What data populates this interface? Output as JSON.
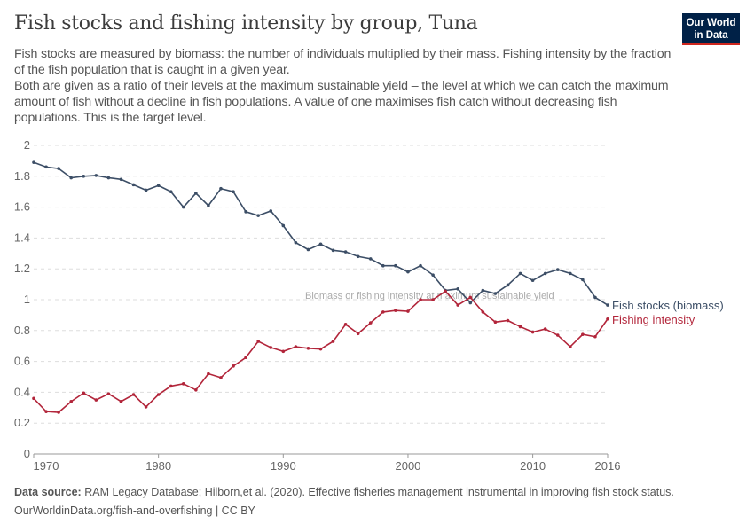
{
  "header": {
    "title": "Fish stocks and fishing intensity by group, Tuna",
    "subtitle_1": "Fish stocks are measured by biomass: the number of individuals multiplied by their mass. Fishing intensity by the fraction of the fish population that is caught in a given year.",
    "subtitle_2": "Both are given as a ratio of their levels at the maximum sustainable yield – the level at which we can catch the maximum amount of fish without a decline in fish populations. A value of one maximises fish catch without decreasing fish populations. This is the target level.",
    "logo": "Our World in Data"
  },
  "chart_data": {
    "type": "line",
    "x": [
      1970,
      1971,
      1972,
      1973,
      1974,
      1975,
      1976,
      1977,
      1978,
      1979,
      1980,
      1981,
      1982,
      1983,
      1984,
      1985,
      1986,
      1987,
      1988,
      1989,
      1990,
      1991,
      1992,
      1993,
      1994,
      1995,
      1996,
      1997,
      1998,
      1999,
      2000,
      2001,
      2002,
      2003,
      2004,
      2005,
      2006,
      2007,
      2008,
      2009,
      2010,
      2011,
      2012,
      2013,
      2014,
      2015,
      2016
    ],
    "series": [
      {
        "name": "Fish stocks (biomass)",
        "color": "#3c4e66",
        "values": [
          1.89,
          1.86,
          1.85,
          1.79,
          1.8,
          1.805,
          1.79,
          1.78,
          1.745,
          1.71,
          1.74,
          1.7,
          1.6,
          1.69,
          1.61,
          1.72,
          1.7,
          1.57,
          1.545,
          1.575,
          1.48,
          1.37,
          1.325,
          1.36,
          1.32,
          1.31,
          1.28,
          1.265,
          1.22,
          1.22,
          1.18,
          1.22,
          1.16,
          1.06,
          1.07,
          0.98,
          1.06,
          1.04,
          1.095,
          1.17,
          1.125,
          1.17,
          1.195,
          1.17,
          1.13,
          1.015,
          0.965
        ]
      },
      {
        "name": "Fishing intensity",
        "color": "#b2253a",
        "values": [
          0.36,
          0.275,
          0.27,
          0.34,
          0.395,
          0.35,
          0.39,
          0.34,
          0.385,
          0.305,
          0.385,
          0.44,
          0.455,
          0.415,
          0.52,
          0.495,
          0.57,
          0.625,
          0.73,
          0.69,
          0.665,
          0.695,
          0.685,
          0.68,
          0.73,
          0.84,
          0.78,
          0.85,
          0.92,
          0.93,
          0.925,
          1.0,
          1.0,
          1.055,
          0.965,
          1.015,
          0.92,
          0.855,
          0.865,
          0.825,
          0.79,
          0.81,
          0.77,
          0.695,
          0.775,
          0.76,
          0.875
        ]
      }
    ],
    "xticks": [
      "1970",
      "1980",
      "1990",
      "2000",
      "2010",
      "2016"
    ],
    "yticks": [
      "0",
      "0.2",
      "0.4",
      "0.6",
      "0.8",
      "1",
      "1.2",
      "1.4",
      "1.6",
      "1.8",
      "2"
    ],
    "ylim": [
      0,
      2
    ],
    "xlim": [
      1970,
      2016
    ],
    "grid": "horizontal dashed",
    "legend": "right, inline labels",
    "annotation": "Biomass or fishing intensity at maximum sustainable yield",
    "reference_value": 1
  },
  "footer": {
    "source_label": "Data source:",
    "source_text": "RAM Legacy Database; Hilborn,et al. (2020). Effective fisheries management instrumental in improving fish stock status.",
    "url": "OurWorldinData.org/fish-and-overfishing | CC BY"
  }
}
